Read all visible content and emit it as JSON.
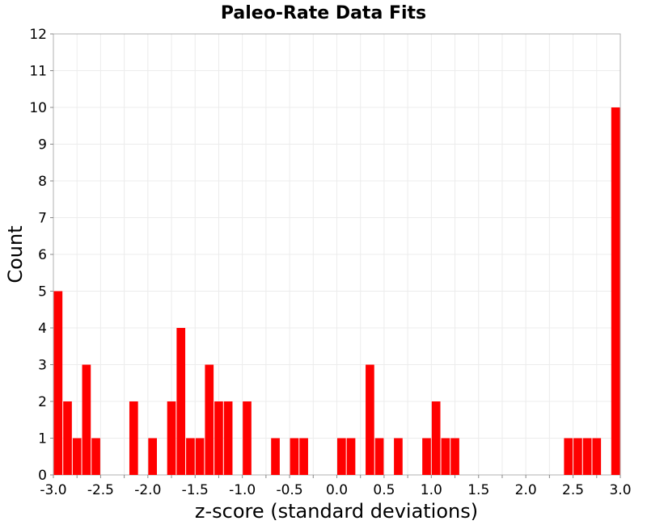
{
  "chart_data": {
    "type": "bar",
    "title": "Paleo-Rate Data Fits",
    "xlabel": "z-score (standard deviations)",
    "ylabel": "Count",
    "xlim": [
      -3.0,
      3.0
    ],
    "ylim": [
      0,
      12
    ],
    "bin_width": 0.1,
    "x_ticks": [
      "-3.0",
      "-2.5",
      "-2.0",
      "-1.5",
      "-1.0",
      "-0.5",
      "0.0",
      "0.5",
      "1.0",
      "1.5",
      "2.0",
      "2.5",
      "3.0"
    ],
    "y_ticks": [
      "0",
      "1",
      "2",
      "3",
      "4",
      "5",
      "6",
      "7",
      "8",
      "9",
      "10",
      "11",
      "12"
    ],
    "grid": true,
    "bar_color": "#ff0000",
    "bins": [
      {
        "x": -3.0,
        "count": 5
      },
      {
        "x": -2.9,
        "count": 2
      },
      {
        "x": -2.8,
        "count": 1
      },
      {
        "x": -2.7,
        "count": 3
      },
      {
        "x": -2.6,
        "count": 1
      },
      {
        "x": -2.2,
        "count": 2
      },
      {
        "x": -2.0,
        "count": 1
      },
      {
        "x": -1.8,
        "count": 2
      },
      {
        "x": -1.7,
        "count": 4
      },
      {
        "x": -1.6,
        "count": 1
      },
      {
        "x": -1.5,
        "count": 1
      },
      {
        "x": -1.4,
        "count": 3
      },
      {
        "x": -1.3,
        "count": 2
      },
      {
        "x": -1.2,
        "count": 2
      },
      {
        "x": -1.0,
        "count": 2
      },
      {
        "x": -0.7,
        "count": 1
      },
      {
        "x": -0.5,
        "count": 1
      },
      {
        "x": -0.4,
        "count": 1
      },
      {
        "x": 0.0,
        "count": 1
      },
      {
        "x": 0.1,
        "count": 1
      },
      {
        "x": 0.3,
        "count": 3
      },
      {
        "x": 0.4,
        "count": 1
      },
      {
        "x": 0.6,
        "count": 1
      },
      {
        "x": 0.9,
        "count": 1
      },
      {
        "x": 1.0,
        "count": 2
      },
      {
        "x": 1.1,
        "count": 1
      },
      {
        "x": 1.2,
        "count": 1
      },
      {
        "x": 2.4,
        "count": 1
      },
      {
        "x": 2.5,
        "count": 1
      },
      {
        "x": 2.6,
        "count": 1
      },
      {
        "x": 2.7,
        "count": 1
      },
      {
        "x": 2.9,
        "count": 10
      }
    ]
  }
}
